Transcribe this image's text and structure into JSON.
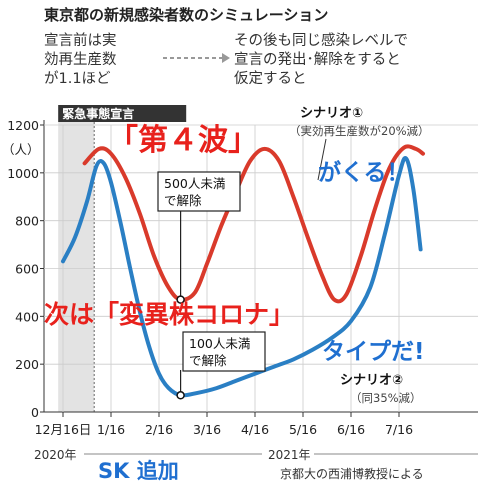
{
  "header": {
    "title": "東京都の新規感染者数のシミュレーション",
    "note_left_1": "宣言前は実",
    "note_left_2": "効再生産数",
    "note_left_3": "が1.1ほど",
    "note_right_1": "その後も同じ感染レベルで",
    "note_right_2": "宣言の発出･解除をすると",
    "note_right_3": "仮定すると"
  },
  "emergency_label": "緊急事態宣言",
  "overlay": {
    "fourth_wave": "「第４波」",
    "coming": "がくる！",
    "next_variant": "次は「変異株コロナ」",
    "type_da": "タイプだ!",
    "sk_added": "SK 追加"
  },
  "annotations": {
    "box1_line1": "500人未満",
    "box1_line2": "で解除",
    "box2_line1": "100人未満",
    "box2_line2": "で解除"
  },
  "footer": {
    "year_2020": "2020年",
    "year_2021": "2021年",
    "source": "京都大の西浦博教授による"
  },
  "colors": {
    "red_series": "#d93a2b",
    "blue_series": "#2a7fc4",
    "overlay_red": "#e8211c",
    "overlay_blue": "#1f6fd0",
    "shade": "#e3e3e3"
  },
  "chart_data": {
    "type": "line",
    "ylabel": "（人）",
    "ylim": [
      0,
      1200
    ],
    "y_ticks": [
      0,
      200,
      400,
      600,
      800,
      1000,
      1200
    ],
    "x_ticks": [
      "12月16日",
      "1/16",
      "2/16",
      "3/16",
      "4/16",
      "5/16",
      "6/16",
      "7/16"
    ],
    "x_index_range": [
      -0.1,
      7.5
    ],
    "shaded_region": {
      "label": "緊急事態宣言",
      "x_range": [
        -0.1,
        0.65
      ]
    },
    "series": [
      {
        "name": "シナリオ①",
        "note": "（実効再生産数が20%減）",
        "x": [
          0.45,
          0.75,
          1.0,
          1.3,
          1.6,
          1.9,
          2.2,
          2.45,
          2.75,
          3.0,
          3.3,
          3.6,
          3.9,
          4.2,
          4.5,
          4.8,
          5.1,
          5.4,
          5.65,
          5.9,
          6.2,
          6.5,
          6.8,
          7.1,
          7.35,
          7.5
        ],
        "values": [
          1040,
          1100,
          1080,
          980,
          830,
          650,
          520,
          470,
          500,
          620,
          780,
          920,
          1050,
          1100,
          1050,
          900,
          730,
          570,
          470,
          490,
          650,
          850,
          1020,
          1105,
          1100,
          1080
        ]
      },
      {
        "name": "シナリオ②",
        "note": "（同35%減）",
        "x": [
          0.0,
          0.25,
          0.5,
          0.7,
          0.85,
          1.0,
          1.2,
          1.4,
          1.6,
          1.8,
          2.0,
          2.2,
          2.45,
          2.8,
          3.2,
          3.6,
          4.0,
          4.4,
          4.8,
          5.2,
          5.6,
          6.0,
          6.4,
          6.7,
          7.0,
          7.15,
          7.3,
          7.45
        ],
        "values": [
          630,
          730,
          880,
          1030,
          1040,
          960,
          790,
          600,
          420,
          270,
          160,
          100,
          70,
          80,
          100,
          130,
          160,
          190,
          220,
          260,
          310,
          380,
          520,
          740,
          990,
          1060,
          930,
          680
        ]
      }
    ],
    "callouts": [
      {
        "text": "500人未満で解除",
        "x": 2.45,
        "y": 470
      },
      {
        "text": "100人未満で解除",
        "x": 2.45,
        "y": 70
      }
    ]
  }
}
